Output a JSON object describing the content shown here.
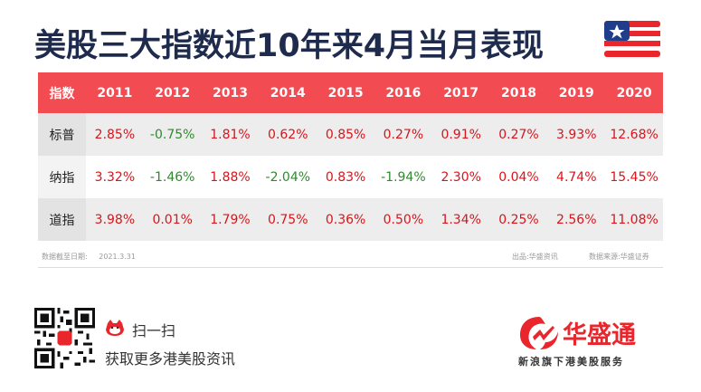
{
  "title": "美股三大指数近10年来4月当月表现",
  "table": {
    "corner": "指数",
    "years": [
      "2011",
      "2012",
      "2013",
      "2014",
      "2015",
      "2016",
      "2017",
      "2018",
      "2019",
      "2020"
    ],
    "rows": [
      {
        "label": "标普",
        "values": [
          "2.85%",
          "-0.75%",
          "1.81%",
          "0.62%",
          "0.85%",
          "0.27%",
          "0.91%",
          "0.27%",
          "3.93%",
          "12.68%"
        ]
      },
      {
        "label": "纳指",
        "values": [
          "3.32%",
          "-1.46%",
          "1.88%",
          "-2.04%",
          "0.83%",
          "-1.94%",
          "2.30%",
          "0.04%",
          "4.74%",
          "15.45%"
        ]
      },
      {
        "label": "道指",
        "values": [
          "3.98%",
          "0.01%",
          "1.79%",
          "0.75%",
          "0.36%",
          "0.50%",
          "1.34%",
          "0.25%",
          "2.56%",
          "11.08%"
        ]
      }
    ]
  },
  "meta": {
    "cutoff_label": "数据截至日期:",
    "cutoff_date": "2021.3.31",
    "source": "出品:华盛资讯",
    "data_source": "数据来源:华盛证券"
  },
  "footer": {
    "scan_label": "扫一扫",
    "cta": "获取更多港美股资讯",
    "brand": "华盛通",
    "slogan": "新浪旗下港美股服务"
  },
  "watermark": "华盛通",
  "colors": {
    "header_red": "#f24b52",
    "positive": "#d9141b",
    "negative": "#2f8a2f",
    "title": "#1f2b4d",
    "brand": "#e8262c"
  },
  "icons": [
    "us-flag-icon",
    "qr-code",
    "mascot-icon",
    "huasheng-logo-icon"
  ]
}
